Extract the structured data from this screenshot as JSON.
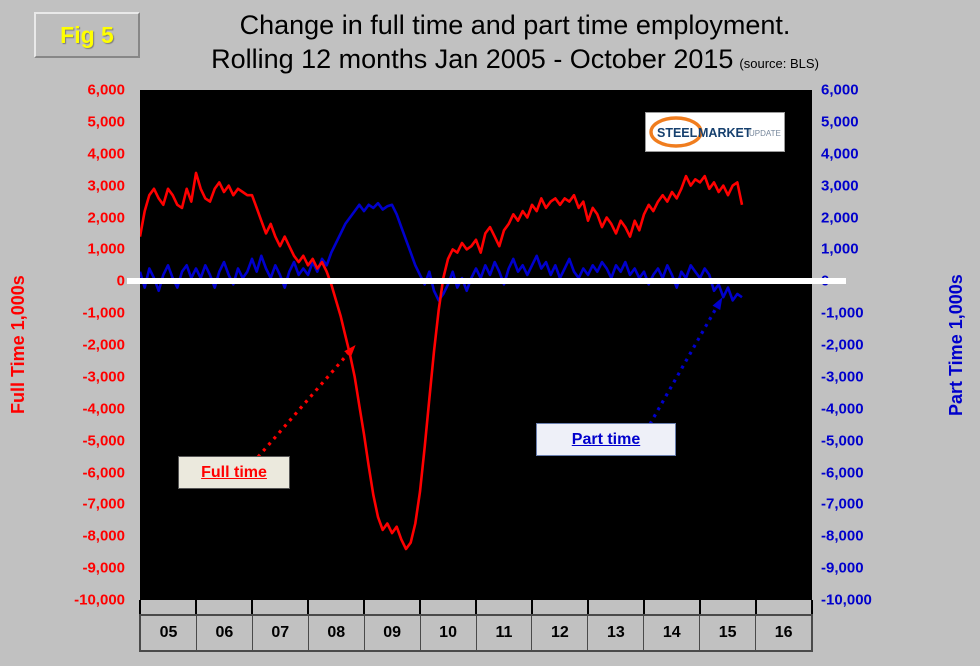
{
  "figure": {
    "badge": "Fig 5"
  },
  "logo": {
    "steel": "STEEL",
    "market": "MARKET",
    "update": "UPDATE"
  },
  "chart_data": {
    "type": "line",
    "title": "Change in full time and part time employment.",
    "subtitle": "Rolling 12 months Jan 2005 - October 2015",
    "source_note": "(source: BLS)",
    "left_axis_label": "Full Time 1,000s",
    "right_axis_label": "Part Time 1,000s",
    "background": "#000000",
    "zero_line_color": "#ffffff",
    "ylim": [
      -10000,
      6000
    ],
    "ytick_step": 1000,
    "ytick_labels": [
      "6,000",
      "5,000",
      "4,000",
      "3,000",
      "2,000",
      "1,000",
      "0",
      "-1,000",
      "-2,000",
      "-3,000",
      "-4,000",
      "-5,000",
      "-6,000",
      "-7,000",
      "-8,000",
      "-9,000",
      "-10,000"
    ],
    "x_start_year": 2005,
    "x_span_years": 12,
    "points_per_year": 12,
    "x_tick_labels": [
      "05",
      "06",
      "07",
      "08",
      "09",
      "10",
      "11",
      "12",
      "13",
      "14",
      "15",
      "16"
    ],
    "series": [
      {
        "name": "Full time",
        "color": "#ff0000",
        "values": [
          1400,
          2200,
          2700,
          2900,
          2600,
          2400,
          2900,
          2700,
          2400,
          2300,
          2900,
          2500,
          3400,
          2900,
          2600,
          2500,
          2900,
          3100,
          2800,
          3000,
          2700,
          2900,
          2800,
          2700,
          2700,
          2300,
          1900,
          1500,
          1800,
          1400,
          1100,
          1400,
          1100,
          800,
          600,
          800,
          500,
          700,
          400,
          600,
          300,
          -100,
          -600,
          -1100,
          -1700,
          -2300,
          -3000,
          -3900,
          -4800,
          -5800,
          -6700,
          -7400,
          -7800,
          -7600,
          -7900,
          -7700,
          -8100,
          -8400,
          -8200,
          -7600,
          -6600,
          -5200,
          -3700,
          -2200,
          -900,
          100,
          700,
          1000,
          900,
          1200,
          1000,
          1100,
          1300,
          900,
          1500,
          1700,
          1400,
          1100,
          1600,
          1800,
          2100,
          1900,
          2200,
          2000,
          2400,
          2200,
          2600,
          2300,
          2500,
          2600,
          2400,
          2600,
          2500,
          2700,
          2300,
          2500,
          1900,
          2300,
          2100,
          1700,
          2000,
          1800,
          1500,
          1900,
          1700,
          1400,
          1900,
          1600,
          2100,
          2400,
          2200,
          2500,
          2700,
          2500,
          2800,
          2600,
          2900,
          3300,
          3000,
          3200,
          3100,
          3300,
          2900,
          3100,
          2800,
          3000,
          2700,
          3000,
          3100,
          2400
        ]
      },
      {
        "name": "Part time",
        "color": "#0000cc",
        "values": [
          300,
          -200,
          400,
          100,
          -300,
          200,
          500,
          100,
          -200,
          300,
          500,
          100,
          400,
          100,
          500,
          200,
          -200,
          300,
          600,
          200,
          -100,
          400,
          100,
          300,
          700,
          300,
          800,
          400,
          100,
          500,
          200,
          -200,
          300,
          600,
          200,
          400,
          200,
          600,
          300,
          700,
          500,
          900,
          1200,
          1500,
          1800,
          2000,
          2200,
          2400,
          2200,
          2400,
          2300,
          2450,
          2250,
          2350,
          2400,
          2100,
          1700,
          1300,
          900,
          500,
          200,
          -100,
          300,
          -300,
          -600,
          -400,
          -100,
          300,
          -200,
          100,
          -300,
          100,
          400,
          100,
          500,
          200,
          600,
          300,
          -100,
          400,
          700,
          300,
          500,
          200,
          500,
          800,
          400,
          600,
          200,
          500,
          100,
          400,
          700,
          300,
          100,
          400,
          200,
          500,
          300,
          600,
          400,
          100,
          500,
          300,
          600,
          200,
          400,
          100,
          300,
          -100,
          200,
          400,
          100,
          500,
          200,
          -200,
          300,
          100,
          500,
          300,
          100,
          400,
          200,
          -300,
          -100,
          -500,
          -200,
          -600,
          -400,
          -500
        ]
      }
    ],
    "annotations": [
      {
        "label": "Full time",
        "color": "#ff0000",
        "target_year": 2008.85,
        "target_value": -2000
      },
      {
        "label": "Part time",
        "color": "#0000cc",
        "target_year": 2015.4,
        "target_value": -500
      }
    ]
  }
}
